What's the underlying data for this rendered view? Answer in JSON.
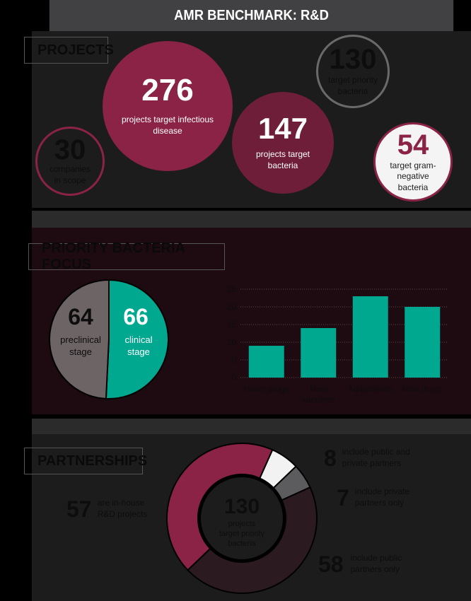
{
  "title": "AMR BENCHMARK: R&D",
  "projects": {
    "label": "PROJECTS",
    "infectious": {
      "value": "276",
      "text": "projects target infectious disease"
    },
    "bacteria": {
      "value": "147",
      "text": "projects target bacteria"
    },
    "priority": {
      "value": "130",
      "text": "target priority bacteria"
    },
    "companies": {
      "value": "30",
      "text": "companies in scope"
    },
    "gramneg": {
      "value": "54",
      "text": "target gram-negative bacteria"
    }
  },
  "priority_focus": {
    "label": "PRIORITY BACTERIA FOCUS",
    "preclinical": {
      "value": "64",
      "text": "preclinical stage"
    },
    "clinical": {
      "value": "66",
      "text": "clinical stage"
    }
  },
  "partnerships": {
    "label": "PARTNERSHIPS",
    "inhouse": {
      "value": "57",
      "text": "are in-house R&D projects"
    },
    "public_private": {
      "value": "8",
      "text": "include public and private partners"
    },
    "private_only": {
      "value": "7",
      "text": "include private partners only"
    },
    "public_only": {
      "value": "58",
      "text": "include public partners only"
    },
    "center": {
      "value": "130",
      "text": "projects target priority bacteria"
    }
  },
  "colors": {
    "maroon": "#8a2346",
    "dark_maroon": "#6e1e38",
    "teal": "#00a88f",
    "grey": "#6d6466",
    "donut_dark": "#2b1a20"
  },
  "chart_data": [
    {
      "type": "pie",
      "labels": [
        "preclinical stage",
        "clinical stage"
      ],
      "values": [
        64,
        66
      ]
    },
    {
      "type": "bar",
      "categories": [
        "Novel drugs",
        "New vaccines",
        "Adaptations",
        "New drugs"
      ],
      "values": [
        9,
        14,
        23,
        20
      ],
      "ylim": [
        0,
        25
      ],
      "yticks": [
        0,
        5,
        10,
        15,
        20,
        25
      ],
      "grid": true
    },
    {
      "type": "pie",
      "labels": [
        "include public partners only",
        "are in-house R&D projects",
        "include public and private partners",
        "include private partners only"
      ],
      "values": [
        58,
        57,
        8,
        7
      ]
    }
  ]
}
